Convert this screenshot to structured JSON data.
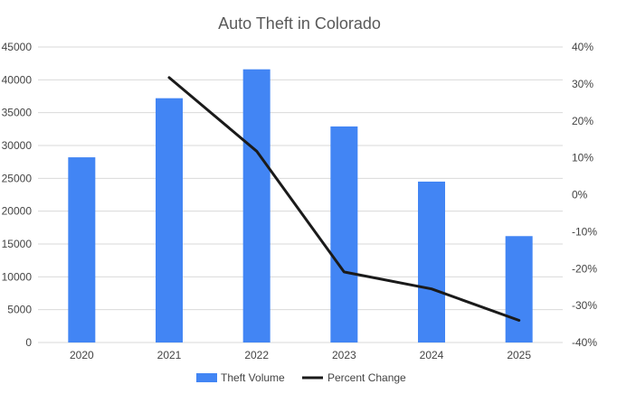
{
  "chart_data": {
    "type": "bar",
    "title": "Auto Theft in Colorado",
    "categories": [
      "2020",
      "2021",
      "2022",
      "2023",
      "2024",
      "2025"
    ],
    "series": [
      {
        "name": "Theft Volume",
        "type": "bar",
        "axis": "left",
        "color": "#4285f4",
        "values": [
          28200,
          37200,
          41600,
          32900,
          24500,
          16200
        ]
      },
      {
        "name": "Percent Change",
        "type": "line",
        "axis": "right",
        "color": "#1a1a1a",
        "values": [
          null,
          31.7,
          11.8,
          -20.9,
          -25.5,
          -34.0
        ]
      }
    ],
    "y_left": {
      "min": 0,
      "max": 45000,
      "ticks": [
        "0",
        "5000",
        "10000",
        "15000",
        "20000",
        "25000",
        "30000",
        "35000",
        "40000",
        "45000"
      ]
    },
    "y_right": {
      "min": -40,
      "max": 40,
      "ticks": [
        "-40%",
        "-30%",
        "-20%",
        "-10%",
        "0%",
        "10%",
        "20%",
        "30%",
        "40%"
      ]
    },
    "grid": true,
    "legend_position": "bottom"
  }
}
